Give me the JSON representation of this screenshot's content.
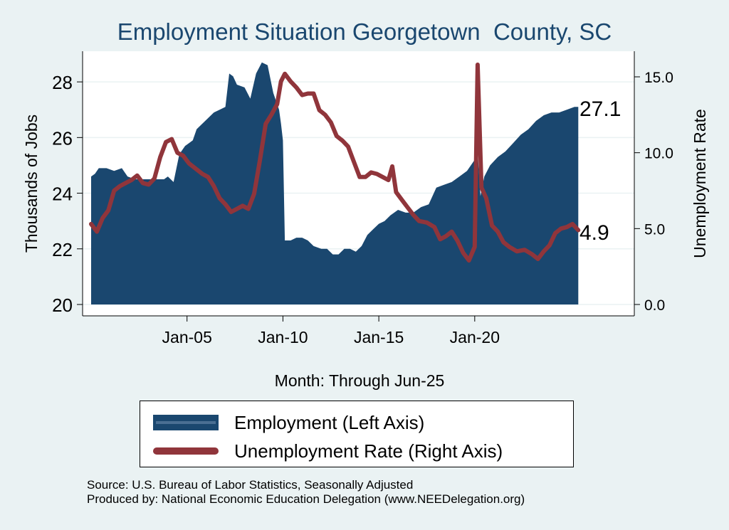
{
  "chart_data": {
    "type": "area+line",
    "title": "Employment Situation Georgetown  County, SC",
    "xlabel": "Month: Through Jun-25",
    "ylabel_left": "Thousands of Jobs",
    "ylabel_right": "Unemployment Rate",
    "ylim_left": [
      20,
      29
    ],
    "ylim_right": [
      0,
      16.5
    ],
    "yticks_left": [
      20,
      22,
      24,
      26,
      28
    ],
    "yticks_right": [
      "0.0",
      "5.0",
      "10.0",
      "15.0"
    ],
    "xticks": [
      {
        "label": "Jan-05",
        "t": 2005.0
      },
      {
        "label": "Jan-10",
        "t": 2010.0
      },
      {
        "label": "Jan-15",
        "t": 2015.0
      },
      {
        "label": "Jan-20",
        "t": 2020.0
      }
    ],
    "x_range": [
      2000.0,
      2025.5
    ],
    "end_labels": {
      "employment": "27.1",
      "unemployment": "4.9"
    },
    "series": [
      {
        "name": "Employment (Left Axis)",
        "kind": "area",
        "color": "#1a476f",
        "points": [
          [
            2000.0,
            24.6
          ],
          [
            2000.2,
            24.7
          ],
          [
            2000.4,
            24.9
          ],
          [
            2000.8,
            24.9
          ],
          [
            2001.2,
            24.8
          ],
          [
            2001.6,
            24.9
          ],
          [
            2001.9,
            24.6
          ],
          [
            2002.3,
            24.5
          ],
          [
            2002.8,
            24.5
          ],
          [
            2003.0,
            24.5
          ],
          [
            2003.4,
            24.5
          ],
          [
            2003.8,
            24.5
          ],
          [
            2004.0,
            24.6
          ],
          [
            2004.3,
            24.4
          ],
          [
            2004.6,
            25.4
          ],
          [
            2004.9,
            25.7
          ],
          [
            2005.1,
            25.8
          ],
          [
            2005.3,
            25.9
          ],
          [
            2005.5,
            26.3
          ],
          [
            2005.8,
            26.5
          ],
          [
            2006.1,
            26.7
          ],
          [
            2006.4,
            26.9
          ],
          [
            2006.7,
            27.0
          ],
          [
            2007.0,
            27.1
          ],
          [
            2007.2,
            28.3
          ],
          [
            2007.4,
            28.2
          ],
          [
            2007.6,
            27.9
          ],
          [
            2008.0,
            27.8
          ],
          [
            2008.3,
            27.4
          ],
          [
            2008.6,
            28.3
          ],
          [
            2008.9,
            28.7
          ],
          [
            2009.2,
            28.6
          ],
          [
            2009.5,
            27.6
          ],
          [
            2009.8,
            27.0
          ],
          [
            2009.9,
            26.5
          ],
          [
            2010.0,
            25.9
          ],
          [
            2010.1,
            22.3
          ],
          [
            2010.4,
            22.3
          ],
          [
            2010.7,
            22.4
          ],
          [
            2011.0,
            22.4
          ],
          [
            2011.3,
            22.3
          ],
          [
            2011.6,
            22.1
          ],
          [
            2012.0,
            22.0
          ],
          [
            2012.3,
            22.0
          ],
          [
            2012.6,
            21.8
          ],
          [
            2012.9,
            21.8
          ],
          [
            2013.2,
            22.0
          ],
          [
            2013.5,
            22.0
          ],
          [
            2013.8,
            21.9
          ],
          [
            2014.1,
            22.1
          ],
          [
            2014.4,
            22.5
          ],
          [
            2014.7,
            22.7
          ],
          [
            2015.0,
            22.9
          ],
          [
            2015.3,
            23.0
          ],
          [
            2015.6,
            23.2
          ],
          [
            2016.0,
            23.4
          ],
          [
            2016.4,
            23.3
          ],
          [
            2016.8,
            23.3
          ],
          [
            2017.2,
            23.5
          ],
          [
            2017.6,
            23.6
          ],
          [
            2018.0,
            24.2
          ],
          [
            2018.4,
            24.3
          ],
          [
            2018.8,
            24.4
          ],
          [
            2019.2,
            24.6
          ],
          [
            2019.6,
            24.8
          ],
          [
            2020.0,
            25.2
          ],
          [
            2020.15,
            25.5
          ],
          [
            2020.3,
            23.9
          ],
          [
            2020.5,
            24.6
          ],
          [
            2020.8,
            25.0
          ],
          [
            2021.2,
            25.3
          ],
          [
            2021.6,
            25.5
          ],
          [
            2022.0,
            25.8
          ],
          [
            2022.4,
            26.1
          ],
          [
            2022.8,
            26.3
          ],
          [
            2023.2,
            26.6
          ],
          [
            2023.6,
            26.8
          ],
          [
            2024.0,
            26.9
          ],
          [
            2024.4,
            26.9
          ],
          [
            2024.8,
            27.0
          ],
          [
            2025.2,
            27.1
          ],
          [
            2025.4,
            27.1
          ]
        ]
      },
      {
        "name": "Unemployment Rate (Right Axis)",
        "kind": "line",
        "color": "#90353b",
        "points": [
          [
            2000.0,
            5.3
          ],
          [
            2000.3,
            4.8
          ],
          [
            2000.6,
            5.7
          ],
          [
            2000.9,
            6.2
          ],
          [
            2001.2,
            7.5
          ],
          [
            2001.5,
            7.8
          ],
          [
            2001.8,
            8.0
          ],
          [
            2002.1,
            8.2
          ],
          [
            2002.4,
            8.5
          ],
          [
            2002.7,
            8.0
          ],
          [
            2003.0,
            7.9
          ],
          [
            2003.3,
            8.3
          ],
          [
            2003.6,
            9.7
          ],
          [
            2003.9,
            10.7
          ],
          [
            2004.2,
            10.9
          ],
          [
            2004.5,
            10.0
          ],
          [
            2004.8,
            9.8
          ],
          [
            2005.1,
            9.3
          ],
          [
            2005.4,
            9.0
          ],
          [
            2005.8,
            8.6
          ],
          [
            2006.1,
            8.4
          ],
          [
            2006.4,
            7.8
          ],
          [
            2006.7,
            7.0
          ],
          [
            2007.0,
            6.6
          ],
          [
            2007.3,
            6.1
          ],
          [
            2007.6,
            6.3
          ],
          [
            2007.9,
            6.5
          ],
          [
            2008.2,
            6.3
          ],
          [
            2008.5,
            7.3
          ],
          [
            2008.8,
            9.5
          ],
          [
            2009.1,
            11.9
          ],
          [
            2009.4,
            12.5
          ],
          [
            2009.7,
            13.2
          ],
          [
            2009.9,
            14.7
          ],
          [
            2010.1,
            15.2
          ],
          [
            2010.4,
            14.7
          ],
          [
            2010.7,
            14.3
          ],
          [
            2011.0,
            13.8
          ],
          [
            2011.3,
            13.9
          ],
          [
            2011.6,
            13.9
          ],
          [
            2011.9,
            12.8
          ],
          [
            2012.2,
            12.5
          ],
          [
            2012.5,
            12.0
          ],
          [
            2012.8,
            11.1
          ],
          [
            2013.1,
            10.8
          ],
          [
            2013.4,
            10.4
          ],
          [
            2013.7,
            9.4
          ],
          [
            2014.0,
            8.4
          ],
          [
            2014.3,
            8.4
          ],
          [
            2014.6,
            8.7
          ],
          [
            2014.9,
            8.6
          ],
          [
            2015.2,
            8.4
          ],
          [
            2015.5,
            8.2
          ],
          [
            2015.7,
            9.1
          ],
          [
            2015.9,
            7.4
          ],
          [
            2016.2,
            6.9
          ],
          [
            2016.5,
            6.4
          ],
          [
            2016.8,
            5.9
          ],
          [
            2017.1,
            5.5
          ],
          [
            2017.5,
            5.4
          ],
          [
            2017.9,
            5.1
          ],
          [
            2018.2,
            4.3
          ],
          [
            2018.5,
            4.5
          ],
          [
            2018.8,
            4.8
          ],
          [
            2019.1,
            4.2
          ],
          [
            2019.4,
            3.4
          ],
          [
            2019.7,
            2.9
          ],
          [
            2020.0,
            3.8
          ],
          [
            2020.15,
            15.8
          ],
          [
            2020.35,
            7.7
          ],
          [
            2020.6,
            7.0
          ],
          [
            2020.9,
            5.2
          ],
          [
            2021.2,
            4.8
          ],
          [
            2021.5,
            4.1
          ],
          [
            2021.8,
            3.8
          ],
          [
            2022.2,
            3.5
          ],
          [
            2022.6,
            3.6
          ],
          [
            2023.0,
            3.3
          ],
          [
            2023.3,
            3.0
          ],
          [
            2023.6,
            3.5
          ],
          [
            2023.9,
            3.9
          ],
          [
            2024.2,
            4.7
          ],
          [
            2024.5,
            5.0
          ],
          [
            2024.8,
            5.1
          ],
          [
            2025.1,
            5.3
          ],
          [
            2025.4,
            4.9
          ]
        ]
      }
    ]
  },
  "legend": {
    "employment": "Employment (Left Axis)",
    "unemployment": "Unemployment Rate (Right Axis)"
  },
  "source": {
    "line1": "Source: U.S. Bureau of Labor Statistics, Seasonally Adjusted",
    "line2": "Produced by: National Economic Education Delegation (www.NEEDelegation.org)"
  }
}
